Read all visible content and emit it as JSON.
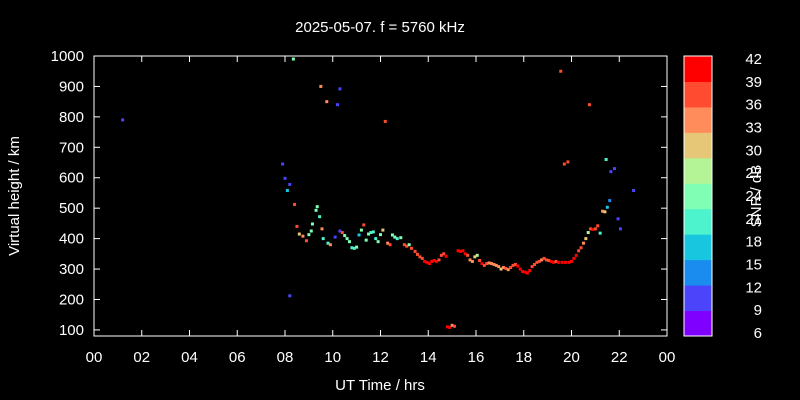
{
  "chart_data": {
    "type": "scatter",
    "title": "2025-05-07. f = 5760 kHz",
    "xlabel": "UT Time / hrs",
    "ylabel": "Virtual height / km",
    "xlim": [
      0,
      24
    ],
    "ylim": [
      80,
      1000
    ],
    "xticks": [
      "00",
      "02",
      "04",
      "06",
      "08",
      "10",
      "12",
      "14",
      "16",
      "18",
      "20",
      "22",
      "00"
    ],
    "yticks": [
      100,
      200,
      300,
      400,
      500,
      600,
      700,
      800,
      900,
      1000
    ],
    "colorbar": {
      "label": "SNR / dB",
      "range": [
        6,
        42
      ],
      "ticks": [
        6,
        9,
        12,
        15,
        18,
        21,
        24,
        27,
        30,
        33,
        36,
        39,
        42
      ],
      "colors": [
        "#8000ff",
        "#4c44fb",
        "#1a8cf0",
        "#19c6e0",
        "#4df3cd",
        "#80ffb4",
        "#b4f396",
        "#e6c677",
        "#ff8c5a",
        "#ff4c30",
        "#ff0000"
      ]
    },
    "points": [
      [
        1.2,
        790,
        12
      ],
      [
        7.9,
        645,
        12
      ],
      [
        8.0,
        598,
        12
      ],
      [
        8.1,
        558,
        18
      ],
      [
        8.2,
        578,
        12
      ],
      [
        8.2,
        212,
        12
      ],
      [
        8.35,
        990,
        24
      ],
      [
        8.4,
        512,
        36
      ],
      [
        8.5,
        440,
        36
      ],
      [
        8.6,
        415,
        30
      ],
      [
        8.75,
        408,
        33
      ],
      [
        8.9,
        393,
        36
      ],
      [
        9.0,
        413,
        24
      ],
      [
        9.1,
        425,
        24
      ],
      [
        9.15,
        448,
        24
      ],
      [
        9.3,
        493,
        24
      ],
      [
        9.35,
        505,
        24
      ],
      [
        9.45,
        472,
        21
      ],
      [
        9.5,
        900,
        33
      ],
      [
        9.55,
        432,
        33
      ],
      [
        9.6,
        400,
        21
      ],
      [
        9.75,
        850,
        33
      ],
      [
        9.8,
        385,
        21
      ],
      [
        9.9,
        380,
        33
      ],
      [
        10.1,
        405,
        12
      ],
      [
        10.2,
        840,
        12
      ],
      [
        10.3,
        892,
        12
      ],
      [
        10.3,
        425,
        12
      ],
      [
        10.4,
        420,
        36
      ],
      [
        10.5,
        410,
        24
      ],
      [
        10.6,
        400,
        24
      ],
      [
        10.7,
        390,
        24
      ],
      [
        10.8,
        370,
        21
      ],
      [
        10.9,
        368,
        21
      ],
      [
        11.0,
        372,
        24
      ],
      [
        11.1,
        412,
        18
      ],
      [
        11.2,
        428,
        24
      ],
      [
        11.3,
        445,
        36
      ],
      [
        11.4,
        395,
        24
      ],
      [
        11.5,
        415,
        24
      ],
      [
        11.6,
        420,
        21
      ],
      [
        11.7,
        422,
        21
      ],
      [
        11.8,
        400,
        21
      ],
      [
        11.9,
        390,
        24
      ],
      [
        12.0,
        413,
        24
      ],
      [
        12.1,
        428,
        30
      ],
      [
        12.2,
        785,
        36
      ],
      [
        12.3,
        385,
        33
      ],
      [
        12.4,
        380,
        36
      ],
      [
        12.5,
        412,
        24
      ],
      [
        12.6,
        405,
        24
      ],
      [
        12.7,
        400,
        21
      ],
      [
        12.85,
        403,
        24
      ],
      [
        13.0,
        380,
        36
      ],
      [
        13.1,
        375,
        36
      ],
      [
        13.2,
        380,
        24
      ],
      [
        13.3,
        368,
        36
      ],
      [
        13.45,
        358,
        36
      ],
      [
        13.55,
        348,
        36
      ],
      [
        13.65,
        340,
        36
      ],
      [
        13.75,
        335,
        36
      ],
      [
        13.85,
        325,
        42
      ],
      [
        13.95,
        322,
        39
      ],
      [
        14.05,
        318,
        42
      ],
      [
        14.15,
        325,
        39
      ],
      [
        14.25,
        328,
        39
      ],
      [
        14.35,
        325,
        39
      ],
      [
        14.45,
        330,
        36
      ],
      [
        14.55,
        345,
        36
      ],
      [
        14.65,
        350,
        36
      ],
      [
        14.75,
        342,
        39
      ],
      [
        14.8,
        110,
        39
      ],
      [
        14.9,
        108,
        39
      ],
      [
        15.0,
        115,
        33
      ],
      [
        15.1,
        112,
        36
      ],
      [
        15.25,
        360,
        42
      ],
      [
        15.35,
        358,
        39
      ],
      [
        15.45,
        360,
        39
      ],
      [
        15.55,
        350,
        39
      ],
      [
        15.65,
        345,
        36
      ],
      [
        15.75,
        330,
        33
      ],
      [
        15.85,
        325,
        33
      ],
      [
        15.95,
        340,
        30
      ],
      [
        16.05,
        345,
        27
      ],
      [
        16.15,
        328,
        36
      ],
      [
        16.25,
        318,
        39
      ],
      [
        16.35,
        312,
        36
      ],
      [
        16.45,
        318,
        36
      ],
      [
        16.55,
        320,
        33
      ],
      [
        16.65,
        318,
        33
      ],
      [
        16.75,
        315,
        33
      ],
      [
        16.85,
        312,
        33
      ],
      [
        16.95,
        308,
        33
      ],
      [
        17.05,
        300,
        30
      ],
      [
        17.15,
        305,
        33
      ],
      [
        17.25,
        302,
        36
      ],
      [
        17.35,
        298,
        33
      ],
      [
        17.45,
        305,
        36
      ],
      [
        17.55,
        312,
        36
      ],
      [
        17.65,
        315,
        36
      ],
      [
        17.75,
        310,
        39
      ],
      [
        17.85,
        300,
        39
      ],
      [
        17.95,
        292,
        42
      ],
      [
        18.05,
        290,
        39
      ],
      [
        18.15,
        287,
        39
      ],
      [
        18.25,
        295,
        39
      ],
      [
        18.35,
        308,
        36
      ],
      [
        18.45,
        315,
        36
      ],
      [
        18.55,
        322,
        36
      ],
      [
        18.65,
        325,
        36
      ],
      [
        18.75,
        330,
        33
      ],
      [
        18.85,
        335,
        36
      ],
      [
        18.95,
        330,
        36
      ],
      [
        19.05,
        328,
        36
      ],
      [
        19.15,
        325,
        39
      ],
      [
        19.25,
        322,
        39
      ],
      [
        19.35,
        325,
        36
      ],
      [
        19.45,
        322,
        39
      ],
      [
        19.55,
        950,
        36
      ],
      [
        19.6,
        322,
        42
      ],
      [
        19.7,
        645,
        36
      ],
      [
        19.75,
        322,
        42
      ],
      [
        19.85,
        652,
        36
      ],
      [
        19.9,
        322,
        39
      ],
      [
        20.0,
        325,
        42
      ],
      [
        20.1,
        335,
        39
      ],
      [
        20.2,
        345,
        39
      ],
      [
        20.3,
        360,
        36
      ],
      [
        20.4,
        370,
        36
      ],
      [
        20.5,
        385,
        33
      ],
      [
        20.6,
        400,
        30
      ],
      [
        20.7,
        420,
        27
      ],
      [
        20.75,
        840,
        36
      ],
      [
        20.8,
        432,
        36
      ],
      [
        20.9,
        430,
        42
      ],
      [
        21.0,
        432,
        36
      ],
      [
        21.1,
        442,
        36
      ],
      [
        21.2,
        418,
        21
      ],
      [
        21.3,
        490,
        33
      ],
      [
        21.4,
        488,
        30
      ],
      [
        21.45,
        660,
        21
      ],
      [
        21.5,
        503,
        18
      ],
      [
        21.6,
        525,
        15
      ],
      [
        21.65,
        620,
        12
      ],
      [
        21.8,
        630,
        12
      ],
      [
        21.95,
        465,
        12
      ],
      [
        22.05,
        432,
        12
      ],
      [
        22.6,
        558,
        12
      ]
    ]
  }
}
